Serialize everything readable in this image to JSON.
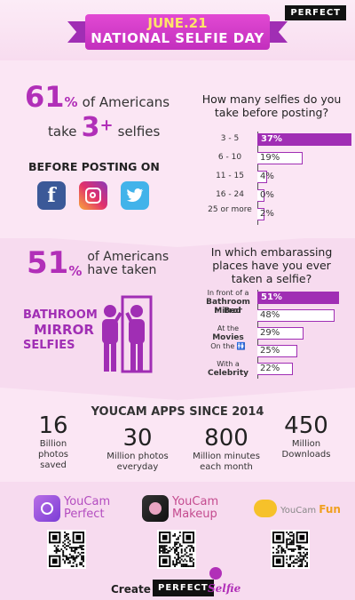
{
  "header": {
    "badge": "PERFECT",
    "ribbon_top": "JUNE.21",
    "ribbon_bottom": "NATIONAL SELFIE DAY"
  },
  "section1": {
    "pct": "61",
    "pct_sign": "%",
    "line1_rest": "of Americans",
    "line2_pre": "take",
    "line2_num": "3",
    "line2_plus": "+",
    "line2_post": "selfies",
    "before_posting": "BEFORE POSTING ON",
    "social_icons": [
      "facebook-icon",
      "instagram-icon",
      "twitter-icon"
    ],
    "question": "How many selfies do you take before posting?",
    "bars": [
      {
        "label": "3 - 5",
        "value": 37,
        "text": "37%"
      },
      {
        "label": "6 - 10",
        "value": 19,
        "text": "19%"
      },
      {
        "label": "11 - 15",
        "value": 4,
        "text": "4%"
      },
      {
        "label": "16 - 24",
        "value": 0,
        "text": "0%"
      },
      {
        "label": "25 or more",
        "value": 2,
        "text": "2%"
      }
    ]
  },
  "section2": {
    "pct": "51",
    "pct_sign": "%",
    "line1": "of Americans",
    "line2": "have taken",
    "bathroom": "BATHROOM",
    "mirror": "MIRROR",
    "selfies": "SELFIES",
    "question": "In which embarassing places have you ever taken a selfie?",
    "bars": [
      {
        "label_pre": "In front of a",
        "label_main": "Bathroom Mirror",
        "value": 51,
        "text": "51%"
      },
      {
        "label_pre": "In",
        "label_main": "Bed",
        "value": 48,
        "text": "48%"
      },
      {
        "label_pre": "At the",
        "label_main": "Movies",
        "value": 29,
        "text": "29%"
      },
      {
        "label_pre": "On the",
        "label_main": "",
        "value": 25,
        "text": "25%"
      },
      {
        "label_pre": "With a",
        "label_main": "Celebrity",
        "value": 22,
        "text": "22%"
      }
    ]
  },
  "section3": {
    "title": "YOUCAM APPS SINCE 2014",
    "stats": [
      {
        "num": "16",
        "label": "Billion photos saved"
      },
      {
        "num": "30",
        "label": "Million photos everyday"
      },
      {
        "num": "800",
        "label": "Million minutes each month"
      },
      {
        "num": "450",
        "label": "Million Downloads"
      }
    ],
    "apps": [
      {
        "line1": "YouCam",
        "line2": "Perfect"
      },
      {
        "line1": "YouCam",
        "line2": "Makeup"
      },
      {
        "line1": "YouCam",
        "line2": "Fun"
      }
    ],
    "footer_create": "Create",
    "footer_perfect": "PERFECT",
    "footer_selfie": "Selfie"
  },
  "colors": {
    "accent": "#b12fb8",
    "bar_fill": "#a02eb4",
    "background": "#f7dbef"
  }
}
